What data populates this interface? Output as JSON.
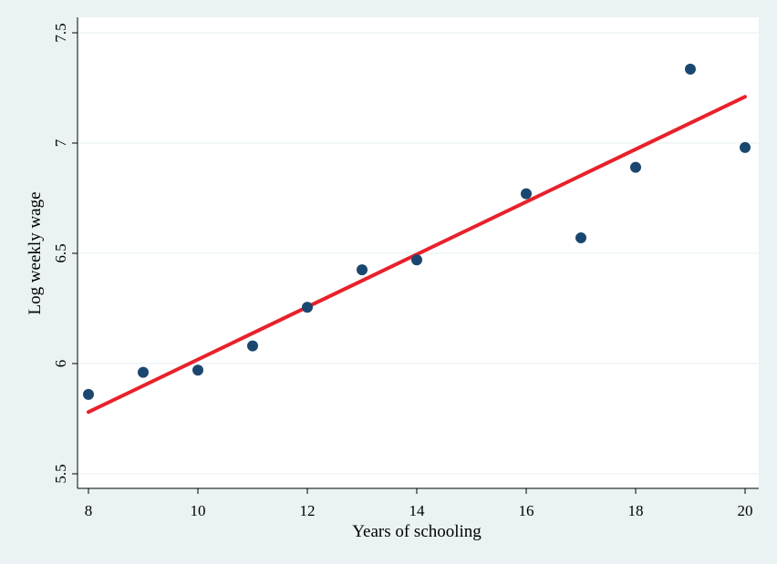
{
  "chart_data": {
    "type": "scatter",
    "title": "",
    "xlabel": "Years of schooling",
    "ylabel": "Log weekly wage",
    "xlim": [
      8,
      20
    ],
    "ylim": [
      5.5,
      7.5
    ],
    "x_ticks": [
      8,
      10,
      12,
      14,
      16,
      18,
      20
    ],
    "y_ticks": [
      5.5,
      6,
      6.5,
      7,
      7.5
    ],
    "x_tick_labels": [
      "8",
      "10",
      "12",
      "14",
      "16",
      "18",
      "20"
    ],
    "y_tick_labels": [
      "5.5",
      "6",
      "6.5",
      "7",
      "7.5"
    ],
    "grid": "horizontal",
    "legend": "none",
    "series": [
      {
        "type": "scatter",
        "color": "#1a476f",
        "points": [
          {
            "x": 8,
            "y": 5.86
          },
          {
            "x": 9,
            "y": 5.96
          },
          {
            "x": 10,
            "y": 5.97
          },
          {
            "x": 11,
            "y": 6.08
          },
          {
            "x": 12,
            "y": 6.255
          },
          {
            "x": 13,
            "y": 6.425
          },
          {
            "x": 14,
            "y": 6.47
          },
          {
            "x": 16,
            "y": 6.77
          },
          {
            "x": 17,
            "y": 6.57
          },
          {
            "x": 18,
            "y": 6.89
          },
          {
            "x": 19,
            "y": 7.335
          },
          {
            "x": 20,
            "y": 6.98
          }
        ]
      },
      {
        "type": "line",
        "color": "#e8212b",
        "points": [
          {
            "x": 8,
            "y": 5.78
          },
          {
            "x": 20,
            "y": 7.21
          }
        ]
      }
    ]
  }
}
